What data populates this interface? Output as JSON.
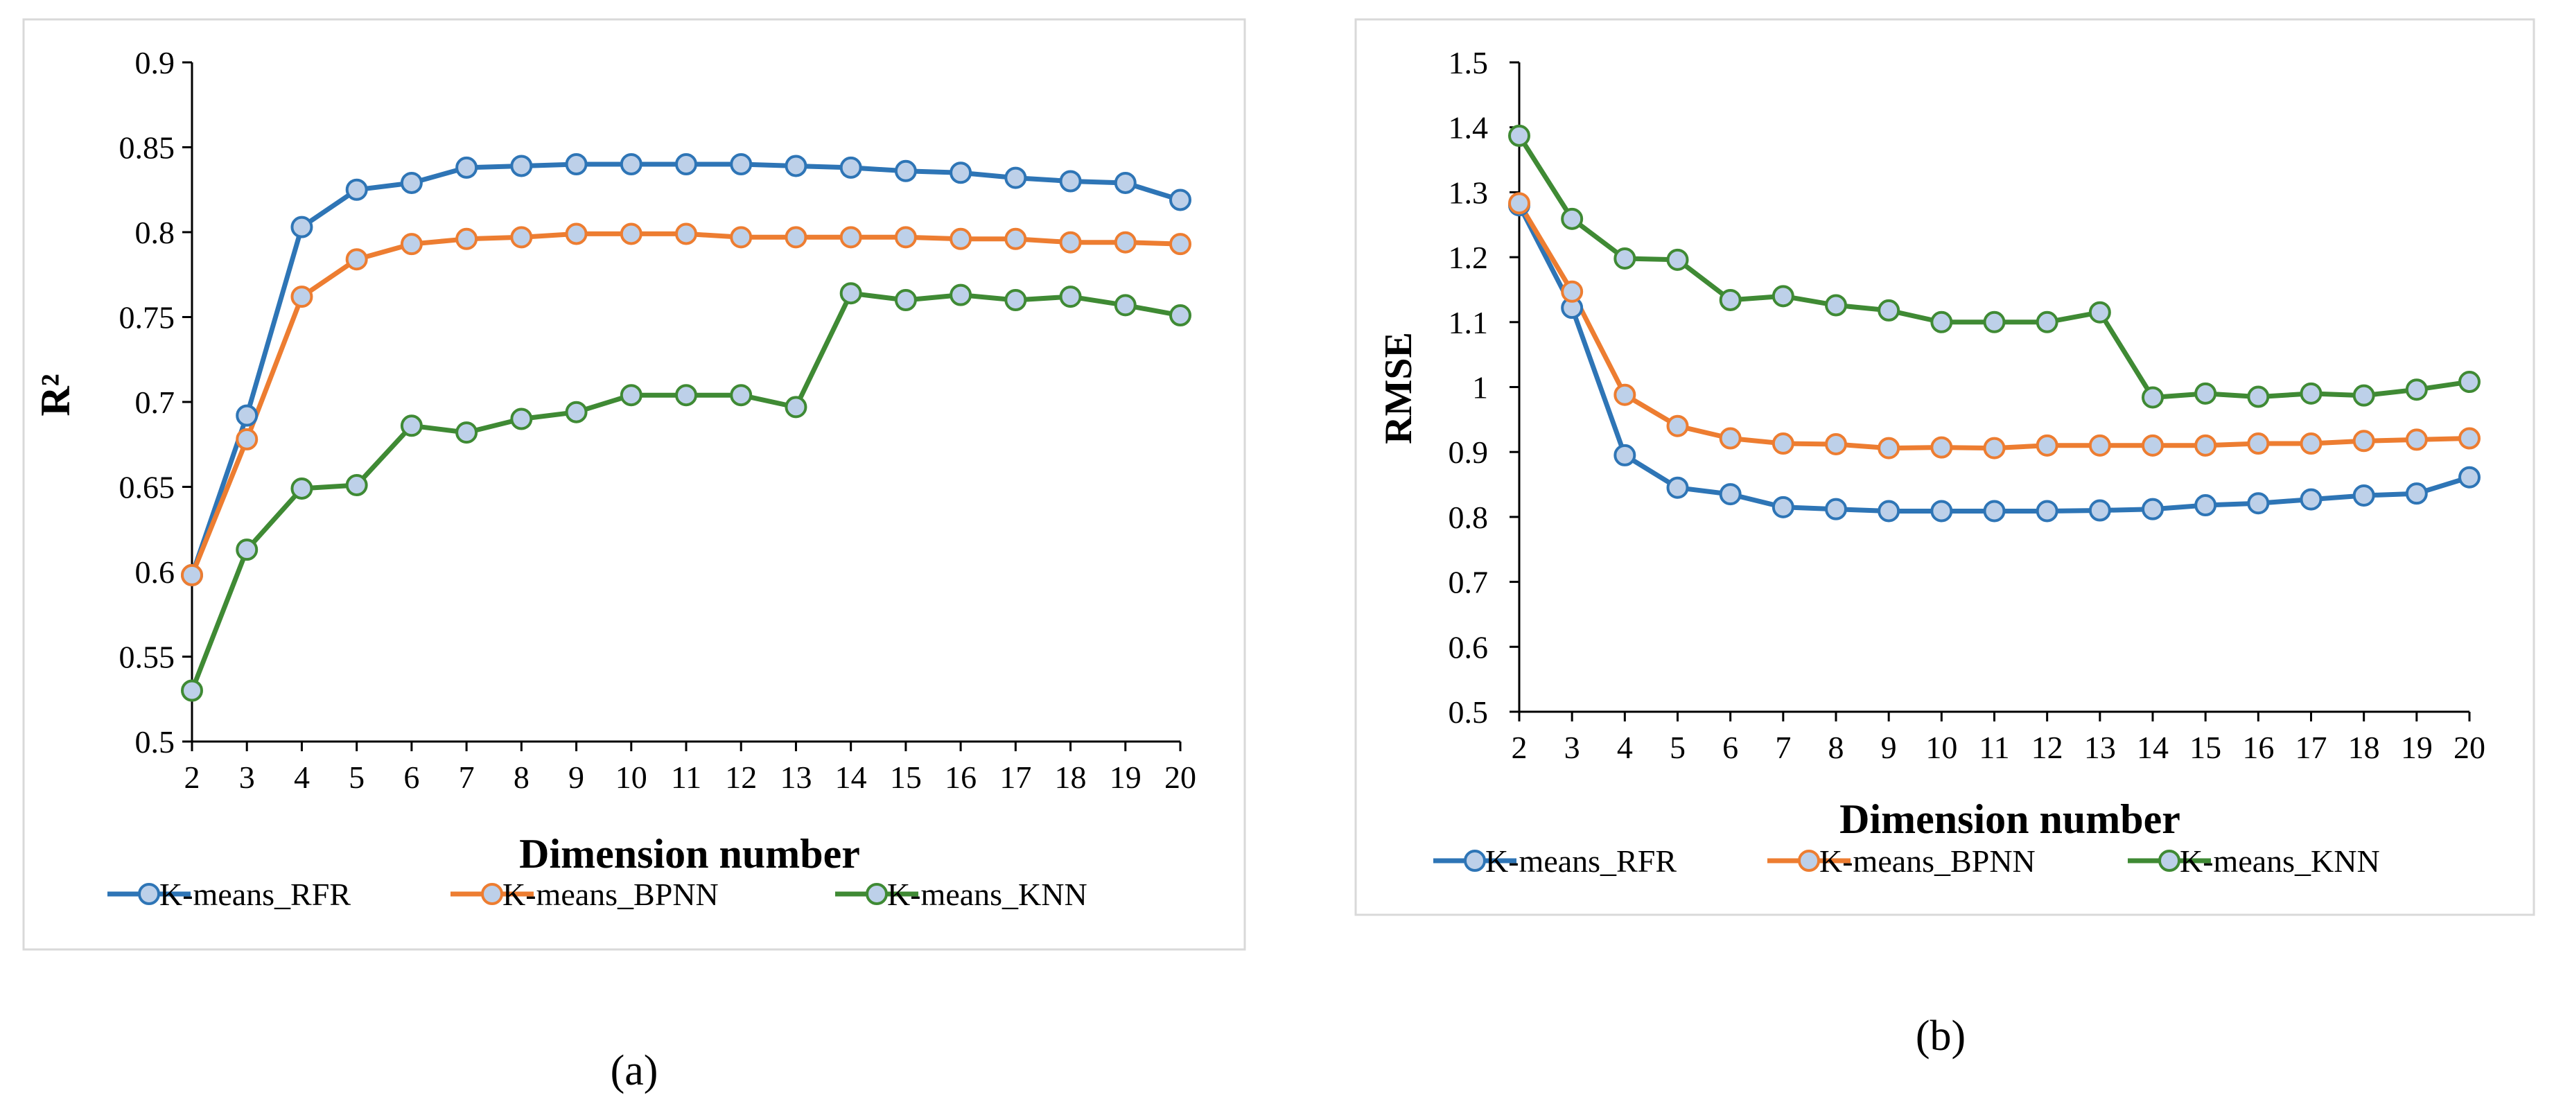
{
  "colors": {
    "K-means_RFR": "#2e75b6",
    "K-means_BPNN": "#ed7d31",
    "K-means_KNN": "#3f8a34",
    "marker_fill": "#bdd0e9",
    "axis": "#000000",
    "frame": "#d9d9d9"
  },
  "chart_data": [
    {
      "type": "line",
      "panel_label": "(a)",
      "xlabel": "Dimension number",
      "ylabel": "R²",
      "ylim": [
        0.5,
        0.9
      ],
      "ytick_step": 0.05,
      "yticks": [
        "0.5",
        "0.55",
        "0.6",
        "0.65",
        "0.7",
        "0.75",
        "0.8",
        "0.85",
        "0.9"
      ],
      "x": [
        2,
        3,
        4,
        5,
        6,
        7,
        8,
        9,
        10,
        11,
        12,
        13,
        14,
        15,
        16,
        17,
        18,
        19,
        20
      ],
      "grid": false,
      "legend_position": "bottom",
      "series": [
        {
          "name": "K-means_RFR",
          "values": [
            0.598,
            0.692,
            0.803,
            0.825,
            0.829,
            0.838,
            0.839,
            0.84,
            0.84,
            0.84,
            0.84,
            0.839,
            0.838,
            0.836,
            0.835,
            0.832,
            0.83,
            0.829,
            0.819
          ]
        },
        {
          "name": "K-means_BPNN",
          "values": [
            0.598,
            0.678,
            0.762,
            0.784,
            0.793,
            0.796,
            0.797,
            0.799,
            0.799,
            0.799,
            0.797,
            0.797,
            0.797,
            0.797,
            0.796,
            0.796,
            0.794,
            0.794,
            0.793
          ]
        },
        {
          "name": "K-means_KNN",
          "values": [
            0.53,
            0.613,
            0.649,
            0.651,
            0.686,
            0.682,
            0.69,
            0.694,
            0.704,
            0.704,
            0.704,
            0.697,
            0.764,
            0.76,
            0.763,
            0.76,
            0.762,
            0.757,
            0.751
          ]
        }
      ]
    },
    {
      "type": "line",
      "panel_label": "(b)",
      "xlabel": "Dimension number",
      "ylabel": "RMSE",
      "ylim": [
        0.5,
        1.5
      ],
      "ytick_step": 0.1,
      "yticks": [
        "0.5",
        "0.6",
        "0.7",
        "0.8",
        "0.9",
        "1",
        "1.1",
        "1.2",
        "1.3",
        "1.4",
        "1.5"
      ],
      "x": [
        2,
        3,
        4,
        5,
        6,
        7,
        8,
        9,
        10,
        11,
        12,
        13,
        14,
        15,
        16,
        17,
        18,
        19,
        20
      ],
      "grid": false,
      "legend_position": "bottom",
      "series": [
        {
          "name": "K-means_RFR",
          "values": [
            1.28,
            1.122,
            0.895,
            0.845,
            0.835,
            0.815,
            0.812,
            0.809,
            0.809,
            0.809,
            0.809,
            0.81,
            0.812,
            0.818,
            0.821,
            0.827,
            0.833,
            0.836,
            0.861
          ]
        },
        {
          "name": "K-means_BPNN",
          "values": [
            1.283,
            1.147,
            0.988,
            0.94,
            0.921,
            0.913,
            0.912,
            0.906,
            0.907,
            0.906,
            0.91,
            0.91,
            0.91,
            0.91,
            0.913,
            0.913,
            0.917,
            0.919,
            0.921
          ]
        },
        {
          "name": "K-means_KNN",
          "values": [
            1.387,
            1.259,
            1.198,
            1.196,
            1.134,
            1.14,
            1.126,
            1.118,
            1.1,
            1.1,
            1.1,
            1.115,
            0.984,
            0.99,
            0.985,
            0.99,
            0.987,
            0.996,
            1.008
          ]
        }
      ]
    }
  ]
}
